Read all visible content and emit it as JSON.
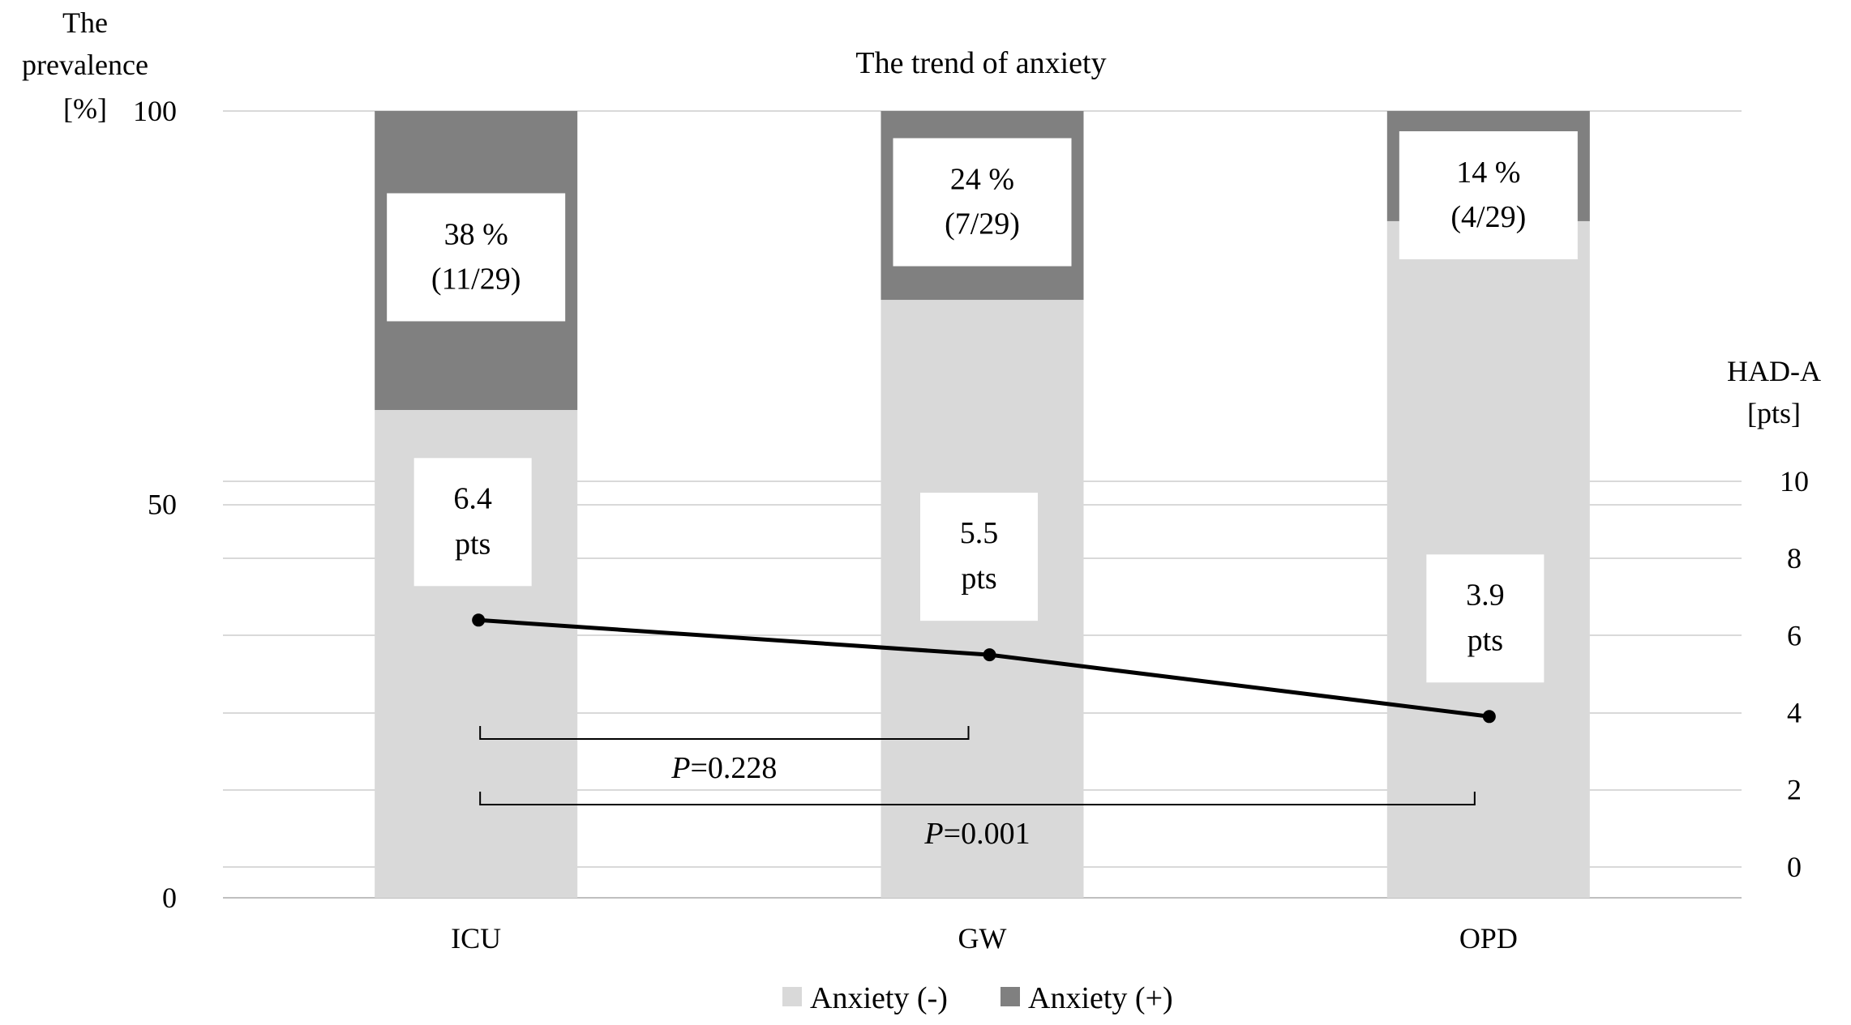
{
  "chart_data": {
    "type": "bar",
    "stacked": true,
    "title": "The trend of anxiety",
    "categories": [
      "ICU",
      "GW",
      "OPD"
    ],
    "y_left": {
      "label_lines": [
        "The",
        "prevalence",
        "[%]"
      ],
      "range": [
        0,
        100
      ],
      "ticks": [
        "0",
        "50",
        "100"
      ]
    },
    "y_right": {
      "label_lines": [
        "HAD-A",
        "[pts]"
      ],
      "range": [
        -0.8,
        19.6
      ],
      "ticks": [
        "0",
        "2",
        "4",
        "6",
        "8",
        "10"
      ]
    },
    "series": [
      {
        "name": "Anxiety (-)",
        "color": "#d9d9d9",
        "values": [
          62,
          76,
          86
        ]
      },
      {
        "name": "Anxiety (+)",
        "color": "#808080",
        "values": [
          38,
          24,
          14
        ]
      }
    ],
    "positive_labels": [
      {
        "percent": "38 %",
        "count": "(11/29)"
      },
      {
        "percent": "24 %",
        "count": "(7/29)"
      },
      {
        "percent": "14 %",
        "count": "(4/29)"
      }
    ],
    "line_series": {
      "name": "HAD-A",
      "axis": "right",
      "color": "#000000",
      "values": [
        6.4,
        5.5,
        3.9
      ],
      "labels": [
        {
          "value": "6.4",
          "unit": "pts"
        },
        {
          "value": "5.5",
          "unit": "pts"
        },
        {
          "value": "3.9",
          "unit": "pts"
        }
      ]
    },
    "comparisons": [
      {
        "from": "ICU",
        "to": "GW",
        "label_italic": "P",
        "label_rest": "=0.228"
      },
      {
        "from": "ICU",
        "to": "OPD",
        "label_italic": "P",
        "label_rest": "=0.001"
      }
    ],
    "grid": true,
    "legend_position": "bottom"
  }
}
